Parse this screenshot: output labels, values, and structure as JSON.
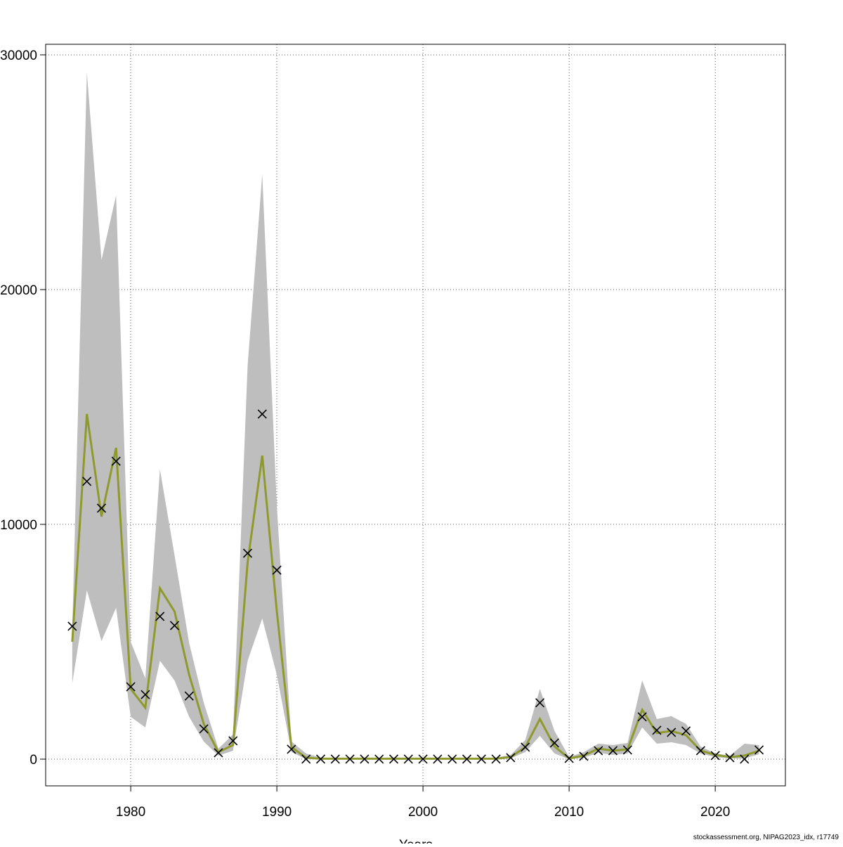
{
  "chart_data": {
    "type": "line",
    "x_label": "Years",
    "footnote": "stockassessment.org, NIPAG2023_idx, r17749",
    "x": [
      1976,
      1977,
      1978,
      1979,
      1980,
      1981,
      1982,
      1983,
      1984,
      1985,
      1986,
      1987,
      1988,
      1989,
      1990,
      1991,
      1992,
      1993,
      1994,
      1995,
      1996,
      1997,
      1998,
      1999,
      2000,
      2001,
      2002,
      2003,
      2004,
      2005,
      2006,
      2007,
      2008,
      2009,
      2010,
      2011,
      2012,
      2013,
      2014,
      2015,
      2016,
      2017,
      2018,
      2019,
      2020,
      2021,
      2022,
      2023
    ],
    "observed": [
      5660,
      11830,
      10690,
      12690,
      3080,
      2750,
      6080,
      5690,
      2690,
      1290,
      270,
      780,
      8770,
      14700,
      8050,
      420,
      0,
      0,
      0,
      0,
      0,
      0,
      0,
      0,
      0,
      0,
      0,
      0,
      0,
      0,
      60,
      510,
      2400,
      690,
      30,
      120,
      360,
      360,
      390,
      1800,
      1230,
      1140,
      1200,
      360,
      150,
      60,
      0,
      390
    ],
    "fitted": [
      5000,
      14700,
      10330,
      13260,
      2990,
      2190,
      7280,
      6290,
      3590,
      1500,
      300,
      600,
      8380,
      12930,
      6290,
      510,
      60,
      20,
      20,
      20,
      20,
      20,
      20,
      20,
      20,
      20,
      20,
      20,
      20,
      20,
      90,
      510,
      1710,
      540,
      30,
      150,
      450,
      360,
      420,
      2100,
      1110,
      1200,
      1020,
      360,
      180,
      90,
      150,
      360
    ],
    "upper": [
      5500,
      29250,
      21260,
      24010,
      5000,
      3440,
      12340,
      8680,
      4940,
      2400,
      450,
      1050,
      16770,
      24910,
      10780,
      750,
      240,
      60,
      60,
      60,
      60,
      60,
      60,
      60,
      60,
      60,
      60,
      60,
      60,
      60,
      180,
      810,
      2990,
      1200,
      90,
      300,
      660,
      600,
      690,
      3350,
      1710,
      1830,
      1500,
      540,
      240,
      150,
      660,
      600
    ],
    "lower": [
      3230,
      7190,
      5030,
      6440,
      1800,
      1350,
      4190,
      3350,
      1800,
      750,
      150,
      360,
      4190,
      5990,
      3590,
      300,
      0,
      0,
      0,
      0,
      0,
      0,
      0,
      0,
      0,
      0,
      0,
      0,
      0,
      0,
      30,
      300,
      990,
      240,
      0,
      60,
      270,
      180,
      240,
      1350,
      660,
      720,
      600,
      240,
      90,
      30,
      30,
      210
    ],
    "fitted_color": "#8f9a2e",
    "band_color": "#bebebe",
    "marker_color": "#000000",
    "xlim": [
      1974.18,
      2024.8
    ],
    "ylim": [
      -1138,
      30449
    ],
    "xticks": [
      1980,
      1990,
      2000,
      2010,
      2020
    ],
    "yticks": [
      0,
      10000,
      20000,
      30000
    ],
    "grid": true
  }
}
